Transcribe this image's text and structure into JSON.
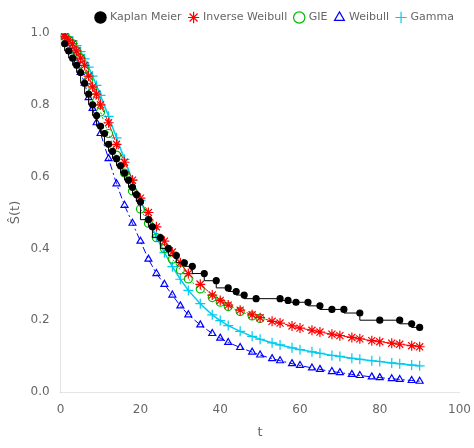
{
  "chart_data": {
    "type": "line",
    "xlabel": "t",
    "ylabel": "Ŝ(t)",
    "xlim": [
      0,
      100
    ],
    "ylim": [
      0.0,
      1.0
    ],
    "xticks": [
      0,
      20,
      40,
      60,
      80,
      100
    ],
    "yticks": [
      {
        "value": 0.0,
        "label": "0.0"
      },
      0.2,
      0.4,
      0.6,
      0.8,
      {
        "value": 1.0,
        "label": "1.0"
      }
    ],
    "grid": false,
    "legend": "upper right",
    "series": [
      {
        "name": "Kaplan Meier",
        "type": "step",
        "color": "#000000",
        "marker": "circle",
        "line_style": "solid",
        "x": [
          1,
          2,
          3,
          4,
          5,
          6,
          7,
          8,
          9,
          10,
          11,
          12,
          13,
          14,
          15,
          16,
          17,
          18,
          19,
          20,
          22,
          23,
          25,
          27,
          29,
          31,
          33,
          36,
          39,
          42,
          44,
          46,
          49,
          55,
          57,
          59,
          62,
          65,
          68,
          71,
          75,
          80,
          85,
          88,
          90
        ],
        "values": [
          0.97,
          0.95,
          0.93,
          0.91,
          0.89,
          0.86,
          0.83,
          0.8,
          0.77,
          0.74,
          0.72,
          0.69,
          0.67,
          0.65,
          0.63,
          0.61,
          0.59,
          0.57,
          0.55,
          0.53,
          0.48,
          0.46,
          0.43,
          0.4,
          0.38,
          0.36,
          0.35,
          0.33,
          0.31,
          0.29,
          0.28,
          0.27,
          0.26,
          0.26,
          0.255,
          0.25,
          0.25,
          0.24,
          0.23,
          0.23,
          0.22,
          0.2,
          0.2,
          0.19,
          0.18
        ]
      },
      {
        "name": "Inverse Weibull",
        "color": "#ff0000",
        "marker": "star",
        "line_style": "dashed",
        "x": [
          1,
          2,
          3,
          4,
          5,
          6,
          7,
          8,
          9,
          10,
          12,
          14,
          16,
          18,
          20,
          22,
          24,
          26,
          28,
          30,
          32,
          35,
          38,
          40,
          42,
          45,
          48,
          50,
          53,
          55,
          58,
          60,
          63,
          65,
          68,
          70,
          73,
          75,
          78,
          80,
          83,
          85,
          88,
          90
        ],
        "values": [
          0.99,
          0.98,
          0.97,
          0.95,
          0.93,
          0.91,
          0.88,
          0.85,
          0.83,
          0.8,
          0.75,
          0.69,
          0.64,
          0.59,
          0.54,
          0.5,
          0.46,
          0.42,
          0.39,
          0.36,
          0.33,
          0.3,
          0.27,
          0.255,
          0.242,
          0.228,
          0.215,
          0.207,
          0.197,
          0.192,
          0.184,
          0.178,
          0.172,
          0.167,
          0.161,
          0.157,
          0.152,
          0.148,
          0.143,
          0.14,
          0.136,
          0.133,
          0.129,
          0.126
        ]
      },
      {
        "name": "GIE",
        "color": "#00bb00",
        "marker": "open_circle",
        "line_style": "dotted",
        "x": [
          1,
          2,
          3,
          4,
          5,
          6,
          7,
          8,
          9,
          10,
          12,
          14,
          16,
          18,
          20,
          22,
          24,
          26,
          28,
          30,
          32,
          35,
          38,
          40,
          42,
          45,
          48,
          50
        ],
        "values": [
          0.99,
          0.98,
          0.97,
          0.95,
          0.93,
          0.9,
          0.87,
          0.84,
          0.81,
          0.78,
          0.72,
          0.66,
          0.61,
          0.56,
          0.51,
          0.47,
          0.43,
          0.4,
          0.37,
          0.34,
          0.315,
          0.287,
          0.263,
          0.25,
          0.238,
          0.224,
          0.212,
          0.205
        ]
      },
      {
        "name": "Weibull",
        "color": "#0000ff",
        "marker": "open_triangle",
        "line_style": "dashdot",
        "x": [
          1,
          2,
          3,
          4,
          5,
          6,
          7,
          8,
          9,
          10,
          12,
          14,
          16,
          18,
          20,
          22,
          24,
          26,
          28,
          30,
          32,
          35,
          38,
          40,
          42,
          45,
          48,
          50,
          53,
          55,
          58,
          60,
          63,
          65,
          68,
          70,
          73,
          75,
          78,
          80,
          83,
          85,
          88,
          90
        ],
        "values": [
          0.99,
          0.97,
          0.95,
          0.92,
          0.89,
          0.86,
          0.82,
          0.79,
          0.75,
          0.72,
          0.65,
          0.58,
          0.52,
          0.47,
          0.42,
          0.37,
          0.33,
          0.3,
          0.27,
          0.24,
          0.215,
          0.187,
          0.163,
          0.15,
          0.138,
          0.124,
          0.111,
          0.103,
          0.093,
          0.087,
          0.079,
          0.074,
          0.067,
          0.063,
          0.057,
          0.054,
          0.049,
          0.046,
          0.042,
          0.04,
          0.037,
          0.035,
          0.032,
          0.03
        ]
      },
      {
        "name": "Gamma",
        "color": "#00ccee",
        "marker": "plus",
        "line_style": "solid",
        "x": [
          1,
          2,
          3,
          4,
          5,
          6,
          7,
          8,
          9,
          10,
          12,
          14,
          16,
          18,
          20,
          22,
          24,
          26,
          28,
          30,
          32,
          35,
          38,
          40,
          42,
          45,
          48,
          50,
          53,
          55,
          58,
          60,
          63,
          65,
          68,
          70,
          73,
          75,
          78,
          80,
          83,
          85,
          88,
          90
        ],
        "values": [
          0.995,
          0.988,
          0.978,
          0.965,
          0.948,
          0.928,
          0.905,
          0.88,
          0.854,
          0.826,
          0.768,
          0.708,
          0.648,
          0.59,
          0.534,
          0.481,
          0.432,
          0.388,
          0.349,
          0.314,
          0.283,
          0.246,
          0.215,
          0.199,
          0.185,
          0.169,
          0.155,
          0.147,
          0.137,
          0.131,
          0.123,
          0.118,
          0.112,
          0.108,
          0.102,
          0.099,
          0.094,
          0.091,
          0.087,
          0.085,
          0.081,
          0.079,
          0.075,
          0.073
        ]
      }
    ]
  }
}
